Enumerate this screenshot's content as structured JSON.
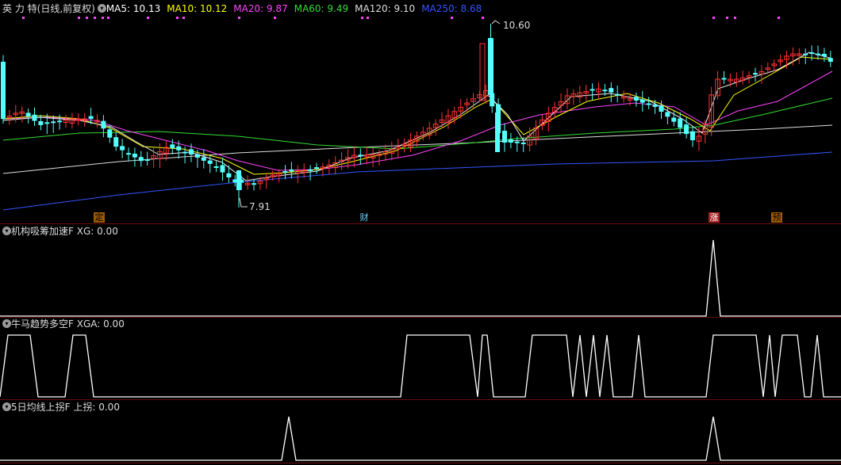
{
  "main": {
    "stock": "英 力 特",
    "period": "(日线,前复权)",
    "ma": [
      {
        "label": "MA5: 10.13",
        "color": "#ffffff"
      },
      {
        "label": "MA10: 10.12",
        "color": "#ffff00"
      },
      {
        "label": "MA20: 9.87",
        "color": "#ff44ff"
      },
      {
        "label": "MA60: 9.49",
        "color": "#33dd33"
      },
      {
        "label": "MA120: 9.10",
        "color": "#dddddd"
      },
      {
        "label": "MA250: 8.68",
        "color": "#3355ff"
      }
    ],
    "high_label": "10.60",
    "low_label": "7.91",
    "event_tags": [
      "定",
      "财",
      "涨",
      "预"
    ]
  },
  "panels": [
    {
      "name": "机构吸筹加速F",
      "value": "XG: 0.00"
    },
    {
      "name": "牛马趋势多空F",
      "value": "XGA: 0.00"
    },
    {
      "name": "5日均线上拐F",
      "value": "上拐: 0.00"
    }
  ],
  "colors": {
    "up": "#ff3333",
    "down": "#55ffff",
    "separator": "#6a0f0f"
  }
}
